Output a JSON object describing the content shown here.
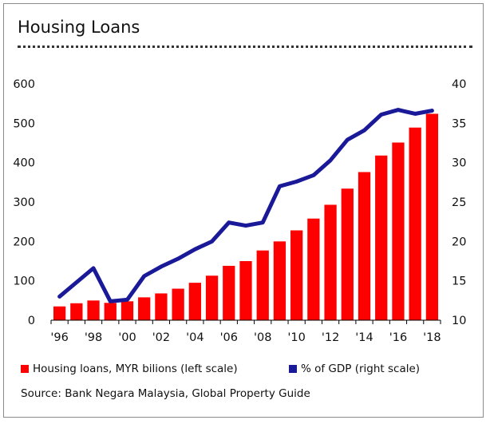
{
  "title": "Housing Loans",
  "source": "Source: Bank Negara Malaysia, Global Property Guide",
  "colors": {
    "bars": "#ff0000",
    "line": "#1a1a99"
  },
  "legend": {
    "bars": "Housing loans, MYR bilions (left scale)",
    "line": "% of GDP (right scale)"
  },
  "chart_data": {
    "type": "bar+line",
    "title": "Housing Loans",
    "categories": [
      "1996",
      "1997",
      "1998",
      "1999",
      "2000",
      "2001",
      "2002",
      "2003",
      "2004",
      "2005",
      "2006",
      "2007",
      "2008",
      "2009",
      "2010",
      "2011",
      "2012",
      "2013",
      "2014",
      "2015",
      "2016",
      "2017",
      "2018"
    ],
    "x_tick_labels": [
      "'96",
      "'98",
      "'00",
      "'02",
      "'04",
      "'06",
      "'08",
      "'10",
      "'12",
      "'14",
      "'16",
      "'18"
    ],
    "series": [
      {
        "name": "Housing loans, MYR bilions (left scale)",
        "type": "bar",
        "axis": "left",
        "values": [
          35,
          43,
          50,
          44,
          48,
          58,
          68,
          80,
          95,
          113,
          138,
          150,
          177,
          200,
          228,
          258,
          293,
          334,
          376,
          418,
          451,
          489,
          524
        ]
      },
      {
        "name": "% of GDP (right scale)",
        "type": "line",
        "axis": "right",
        "values": [
          13.0,
          14.8,
          16.6,
          12.4,
          12.6,
          15.6,
          16.8,
          17.8,
          19.0,
          20.0,
          22.4,
          22.0,
          22.4,
          27.0,
          27.6,
          28.4,
          30.3,
          32.9,
          34.1,
          36.1,
          36.7,
          36.2,
          36.6
        ]
      }
    ],
    "y_left": {
      "ylim": [
        0,
        600
      ],
      "ticks": [
        0,
        100,
        200,
        300,
        400,
        500,
        600
      ]
    },
    "y_right": {
      "ylim": [
        10,
        40
      ],
      "ticks": [
        10,
        15,
        20,
        25,
        30,
        35,
        40
      ]
    },
    "grid": false,
    "legend_position": "bottom"
  }
}
